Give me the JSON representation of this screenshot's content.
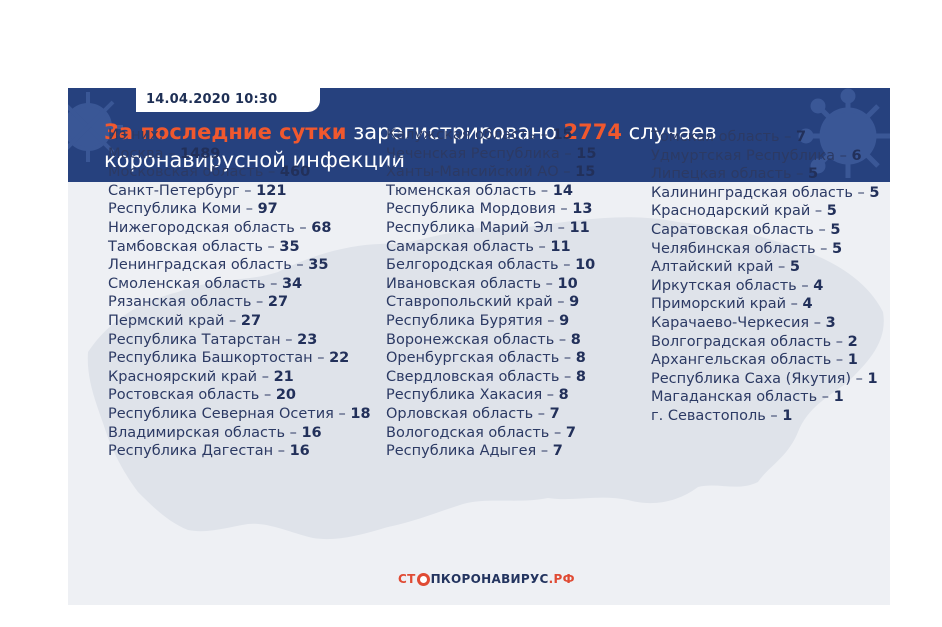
{
  "header": {
    "date": "14.04.2020 10:30",
    "headline_accent": "За последние сутки",
    "headline_text_1": " зарегистрировано ",
    "headline_number": "2774",
    "headline_text_2": " случаев",
    "headline_line2": "коронавирусной инфекции"
  },
  "intro_label": "Из них:",
  "columns": [
    [
      {
        "name": "Москва",
        "value": "1489"
      },
      {
        "name": "Московская область",
        "value": "460"
      },
      {
        "name": "Санкт-Петербург",
        "value": "121"
      },
      {
        "name": "Республика Коми",
        "value": "97"
      },
      {
        "name": "Нижегородская область",
        "value": "68"
      },
      {
        "name": "Тамбовская область",
        "value": "35"
      },
      {
        "name": "Ленинградская область",
        "value": "35"
      },
      {
        "name": "Смоленская область",
        "value": "34"
      },
      {
        "name": "Рязанская область",
        "value": "27"
      },
      {
        "name": "Пермский край",
        "value": "27"
      },
      {
        "name": "Республика Татарстан",
        "value": "23"
      },
      {
        "name": "Республика Башкортостан",
        "value": "22"
      },
      {
        "name": "Красноярский край",
        "value": "21"
      },
      {
        "name": "Ростовская область",
        "value": "20"
      },
      {
        "name": "Республика Северная Осетия",
        "value": "18"
      },
      {
        "name": "Владимирская область",
        "value": "16"
      },
      {
        "name": "Республика Дагестан",
        "value": "16"
      }
    ],
    [
      {
        "name": "Калужская область",
        "value": "15"
      },
      {
        "name": "Чеченская Республика",
        "value": "15"
      },
      {
        "name": "Ханты-Мансийский АО",
        "value": "15"
      },
      {
        "name": "Тюменская область",
        "value": "14"
      },
      {
        "name": "Республика Мордовия",
        "value": "13"
      },
      {
        "name": "Республика Марий Эл",
        "value": "11"
      },
      {
        "name": "Самарская область",
        "value": "11"
      },
      {
        "name": "Белгородская область",
        "value": "10"
      },
      {
        "name": "Ивановская область",
        "value": "10"
      },
      {
        "name": "Ставропольский край",
        "value": "9"
      },
      {
        "name": "Республика Бурятия",
        "value": "9"
      },
      {
        "name": "Воронежская область",
        "value": "8"
      },
      {
        "name": "Оренбургская область",
        "value": "8"
      },
      {
        "name": "Свердловская область",
        "value": "8"
      },
      {
        "name": "Республика Хакасия",
        "value": "8"
      },
      {
        "name": "Орловская область",
        "value": "7"
      },
      {
        "name": "Вологодская область",
        "value": "7"
      },
      {
        "name": "Республика Адыгея",
        "value": "7"
      }
    ],
    [
      {
        "name": "Томская область",
        "value": "7"
      },
      {
        "name": "Удмуртская Республика",
        "value": "6"
      },
      {
        "name": "Липецкая область",
        "value": "5"
      },
      {
        "name": "Калининградская область",
        "value": "5"
      },
      {
        "name": "Краснодарский край",
        "value": "5"
      },
      {
        "name": "Саратовская область",
        "value": "5"
      },
      {
        "name": "Челябинская область",
        "value": "5"
      },
      {
        "name": "Алтайский край",
        "value": "5"
      },
      {
        "name": "Иркутская область",
        "value": "4"
      },
      {
        "name": "Приморский край",
        "value": "4"
      },
      {
        "name": "Карачаево-Черкесия",
        "value": "3"
      },
      {
        "name": "Волгоградская область",
        "value": "2"
      },
      {
        "name": "Архангельская область",
        "value": "1"
      },
      {
        "name": "Республика Саха (Якутия)",
        "value": "1"
      },
      {
        "name": "Магаданская область",
        "value": "1"
      },
      {
        "name": "г. Севастополь",
        "value": "1"
      }
    ]
  ],
  "separator": " – ",
  "brand": {
    "part1": "СТ",
    "part2": "ПКОРОНАВИРУС",
    "part3": ".РФ"
  },
  "colors": {
    "banner": "#26417e",
    "accent": "#f0582e",
    "panel": "#eef0f4",
    "text": "#2c3a64"
  },
  "icons": [
    "virus-icon",
    "russia-map",
    "stop-globe-icon"
  ]
}
